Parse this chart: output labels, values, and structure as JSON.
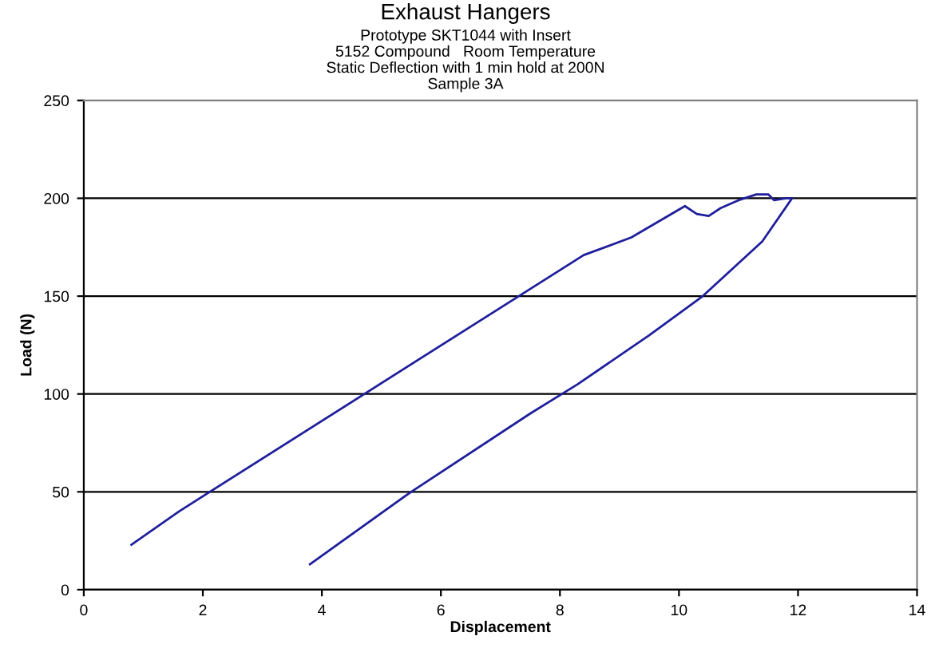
{
  "chart_data": {
    "type": "line",
    "title": "Exhaust Hangers",
    "subtitle": "Prototype SKT1044 with Insert\n5152 Compound   Room Temperature\nStatic Deflection with 1 min hold at 200N\nSample 3A",
    "xlabel": "Displacement",
    "ylabel": "Load (N)",
    "series": [
      {
        "color": "#1f1f9c",
        "x": [
          0.8,
          1.6,
          8.4,
          9.2,
          10.1,
          10.3,
          10.5,
          10.7,
          11.0,
          11.3,
          11.5,
          11.6,
          11.8,
          11.9,
          11.4,
          10.4,
          9.5,
          8.3,
          7.5,
          5.5,
          3.8
        ],
        "values": [
          23,
          40,
          171,
          180,
          196,
          192,
          191,
          195,
          199,
          202,
          202,
          199,
          200,
          200,
          178,
          150,
          130,
          105,
          90,
          50,
          13
        ]
      }
    ],
    "xlim": [
      0,
      14
    ],
    "xticks": [
      0,
      2,
      4,
      6,
      8,
      10,
      12,
      14
    ],
    "ylim": [
      0,
      250
    ],
    "yticks": [
      0,
      50,
      100,
      150,
      200,
      250
    ],
    "grid": "y",
    "marker": "none",
    "line_style": "solid",
    "legend": false
  }
}
